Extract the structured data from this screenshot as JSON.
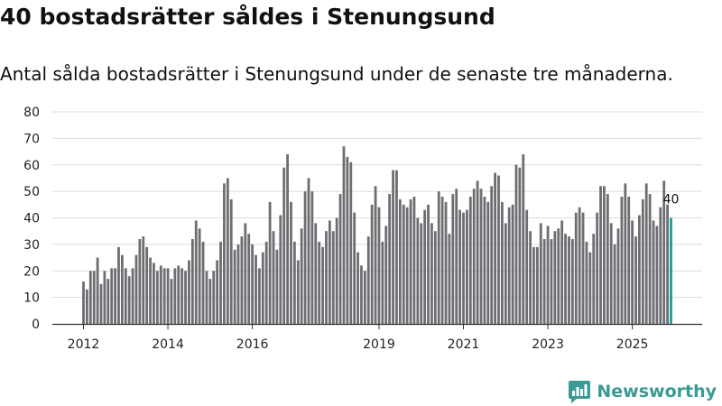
{
  "colors": {
    "bar": "#6e6d72",
    "highlight": "#1f9a8f",
    "grid": "#dcdcdc",
    "axis": "#333333",
    "brand": "#3a9a95"
  },
  "brand": {
    "name": "Newsworthy",
    "icon": "newsworthy-chart-icon"
  },
  "chart_data": {
    "type": "bar",
    "title": "40 bostadsrätter såldes i Stenungsund",
    "subtitle": "Antal sålda bostadsrätter i Stenungsund under de senaste tre månaderna.",
    "xlabel": "",
    "ylabel": "",
    "ylim": [
      0,
      80
    ],
    "yticks": [
      0,
      10,
      20,
      30,
      40,
      50,
      60,
      70,
      80
    ],
    "grid": true,
    "categories": [
      "2012-01",
      "2012-02",
      "2012-03",
      "2012-04",
      "2012-05",
      "2012-06",
      "2012-07",
      "2012-08",
      "2012-09",
      "2012-10",
      "2012-11",
      "2012-12",
      "2013-01",
      "2013-02",
      "2013-03",
      "2013-04",
      "2013-05",
      "2013-06",
      "2013-07",
      "2013-08",
      "2013-09",
      "2013-10",
      "2013-11",
      "2013-12",
      "2014-01",
      "2014-02",
      "2014-03",
      "2014-04",
      "2014-05",
      "2014-06",
      "2014-07",
      "2014-08",
      "2014-09",
      "2014-10",
      "2014-11",
      "2014-12",
      "2015-01",
      "2015-02",
      "2015-03",
      "2015-04",
      "2015-05",
      "2015-06",
      "2015-07",
      "2015-08",
      "2015-09",
      "2015-10",
      "2015-11",
      "2015-12",
      "2016-01",
      "2016-02",
      "2016-03",
      "2016-04",
      "2016-05",
      "2016-06",
      "2016-07",
      "2016-08",
      "2016-09",
      "2016-10",
      "2016-11",
      "2016-12",
      "2017-01",
      "2017-02",
      "2017-03",
      "2017-04",
      "2017-05",
      "2017-06",
      "2017-07",
      "2017-08",
      "2017-09",
      "2017-10",
      "2017-11",
      "2017-12",
      "2018-01",
      "2018-02",
      "2018-03",
      "2018-04",
      "2018-05",
      "2018-06",
      "2018-07",
      "2018-08",
      "2018-09",
      "2018-10",
      "2018-11",
      "2018-12",
      "2019-01",
      "2019-02",
      "2019-03",
      "2019-04",
      "2019-05",
      "2019-06",
      "2019-07",
      "2019-08",
      "2019-09",
      "2019-10",
      "2019-11",
      "2019-12",
      "2020-01",
      "2020-02",
      "2020-03",
      "2020-04",
      "2020-05",
      "2020-06",
      "2020-07",
      "2020-08",
      "2020-09",
      "2020-10",
      "2020-11",
      "2020-12",
      "2021-01",
      "2021-02",
      "2021-03",
      "2021-04",
      "2021-05",
      "2021-06",
      "2021-07",
      "2021-08",
      "2021-09",
      "2021-10",
      "2021-11",
      "2021-12",
      "2022-01",
      "2022-02",
      "2022-03",
      "2022-04",
      "2022-05",
      "2022-06",
      "2022-07",
      "2022-08",
      "2022-09",
      "2022-10",
      "2022-11",
      "2022-12",
      "2023-01",
      "2023-02",
      "2023-03",
      "2023-04",
      "2023-05",
      "2023-06",
      "2023-07",
      "2023-08",
      "2023-09",
      "2023-10",
      "2023-11",
      "2023-12",
      "2024-01",
      "2024-02",
      "2024-03",
      "2024-04",
      "2024-05",
      "2024-06",
      "2024-07",
      "2024-08",
      "2024-09",
      "2024-10",
      "2024-11",
      "2024-12",
      "2025-01",
      "2025-02",
      "2025-03",
      "2025-04",
      "2025-05",
      "2025-06",
      "2025-07",
      "2025-08",
      "2025-09",
      "2025-10",
      "2025-11",
      "2025-12"
    ],
    "values": [
      16,
      13,
      20,
      20,
      25,
      15,
      20,
      17,
      21,
      21,
      29,
      26,
      21,
      18,
      21,
      26,
      32,
      33,
      29,
      25,
      23,
      20,
      22,
      21,
      21,
      17,
      21,
      22,
      21,
      20,
      24,
      32,
      39,
      36,
      31,
      20,
      17,
      20,
      24,
      31,
      53,
      55,
      47,
      28,
      30,
      33,
      38,
      34,
      30,
      26,
      21,
      27,
      31,
      46,
      35,
      28,
      41,
      59,
      64,
      46,
      31,
      24,
      36,
      50,
      55,
      50,
      38,
      31,
      29,
      35,
      39,
      35,
      40,
      49,
      67,
      63,
      61,
      42,
      27,
      22,
      20,
      33,
      45,
      52,
      44,
      31,
      37,
      49,
      58,
      58,
      47,
      45,
      44,
      47,
      48,
      40,
      38,
      43,
      45,
      38,
      35,
      50,
      48,
      46,
      34,
      49,
      51,
      43,
      42,
      43,
      48,
      51,
      54,
      51,
      48,
      46,
      52,
      57,
      56,
      46,
      38,
      44,
      45,
      60,
      59,
      64,
      43,
      35,
      29,
      29,
      38,
      32,
      37,
      32,
      35,
      36,
      39,
      34,
      33,
      32,
      42,
      44,
      42,
      31,
      27,
      34,
      42,
      52,
      52,
      49,
      38,
      30,
      36,
      48,
      53,
      48,
      39,
      33,
      41,
      47,
      53,
      49,
      39,
      37,
      44,
      54,
      45,
      40
    ],
    "highlight_index": 167,
    "data_labels": [
      {
        "index": 167,
        "text": "40"
      }
    ],
    "x_tick_labels": [
      {
        "category": "2012-01",
        "label": "2012"
      },
      {
        "category": "2014-01",
        "label": "2014"
      },
      {
        "category": "2016-01",
        "label": "2016"
      },
      {
        "category": "2019-01",
        "label": "2019"
      },
      {
        "category": "2021-01",
        "label": "2021"
      },
      {
        "category": "2023-01",
        "label": "2023"
      },
      {
        "category": "2025-01",
        "label": "2025"
      }
    ]
  }
}
